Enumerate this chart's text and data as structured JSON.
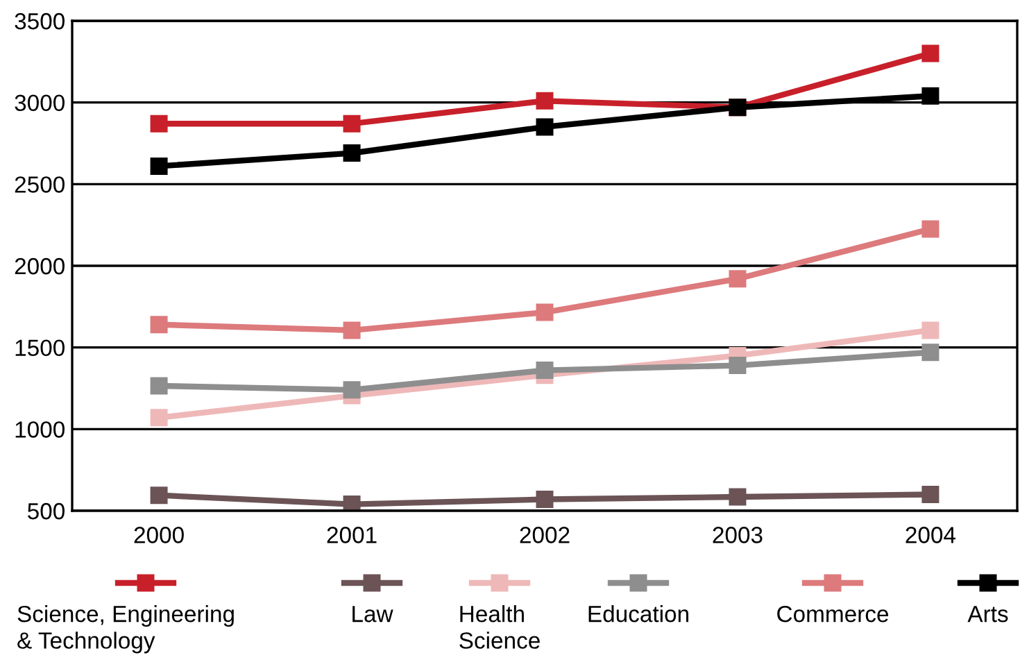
{
  "chart_data": {
    "type": "line",
    "categories": [
      "2000",
      "2001",
      "2002",
      "2003",
      "2004"
    ],
    "series": [
      {
        "name": "Science, Engineering\n& Technology",
        "color": "#c8202a",
        "values": [
          2870,
          2870,
          3010,
          2970,
          3300
        ]
      },
      {
        "name": "Law",
        "color": "#6b5356",
        "values": [
          595,
          540,
          570,
          585,
          600
        ]
      },
      {
        "name": "Health\nScience",
        "color": "#efb8b8",
        "values": [
          1070,
          1205,
          1330,
          1450,
          1605
        ]
      },
      {
        "name": "Education",
        "color": "#8e8e8e",
        "values": [
          1265,
          1240,
          1360,
          1390,
          1470
        ]
      },
      {
        "name": "Commerce",
        "color": "#dd7a7c",
        "values": [
          1640,
          1605,
          1715,
          1920,
          2225
        ]
      },
      {
        "name": "Arts",
        "color": "#000000",
        "values": [
          2610,
          2690,
          2850,
          2970,
          3040
        ]
      }
    ],
    "ylim": [
      500,
      3500
    ],
    "yticks": [
      500,
      1000,
      1500,
      2000,
      2500,
      3000,
      3500
    ],
    "grid": "y",
    "legend": "bottom",
    "marker": "square",
    "line_style": "solid"
  }
}
